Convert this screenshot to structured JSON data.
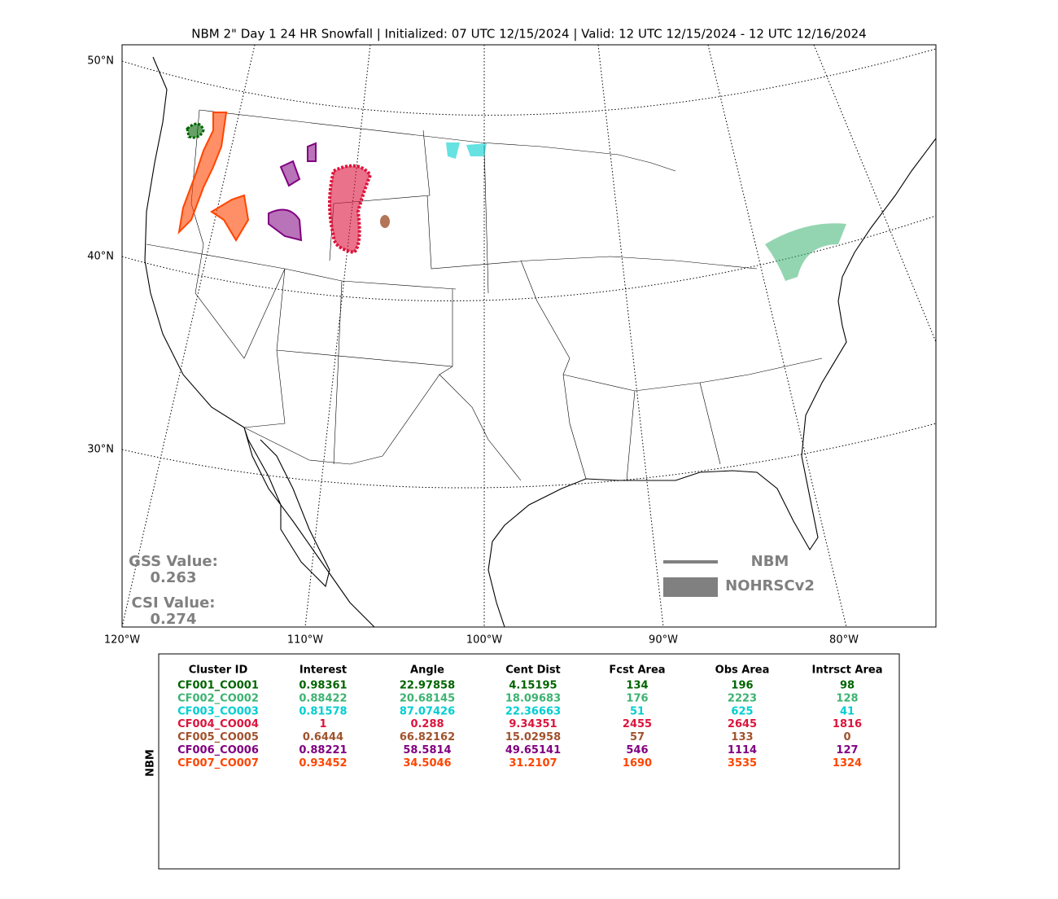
{
  "header": {
    "title": "NBM 2\" Day 1 24 HR Snowfall | Initialized: 07 UTC 12/15/2024 | Valid: 12 UTC 12/15/2024 - 12 UTC 12/16/2024"
  },
  "map": {
    "lat_labels": [
      "50°N",
      "40°N",
      "30°N"
    ],
    "lon_labels": [
      "120°W",
      "110°W",
      "100°W",
      "90°W",
      "80°W"
    ]
  },
  "scores": {
    "gss_label": "GSS Value:",
    "gss": 0.263,
    "csi_label": "CSI Value:",
    "csi": 0.274
  },
  "legend": {
    "line": "NBM",
    "patch": "NOHRSCv2",
    "color": "#808080"
  },
  "table": {
    "side_label": "NBM",
    "columns": [
      "Cluster ID",
      "Interest",
      "Angle",
      "Cent Dist",
      "Fcst Area",
      "Obs Area",
      "Intrsct Area"
    ],
    "rows": [
      {
        "color": "#006400",
        "cells": [
          "CF001_CO001",
          0.98361,
          22.97858,
          4.15195,
          134,
          196,
          98
        ]
      },
      {
        "color": "#3cb371",
        "cells": [
          "CF002_CO002",
          0.88422,
          20.68145,
          18.09683,
          176,
          2223,
          128
        ]
      },
      {
        "color": "#00ced1",
        "cells": [
          "CF003_CO003",
          0.81578,
          87.07426,
          22.36663,
          51,
          625,
          41
        ]
      },
      {
        "color": "#dc143c",
        "cells": [
          "CF004_CO004",
          1,
          0.288,
          9.34351,
          2455,
          2645,
          1816
        ]
      },
      {
        "color": "#a0522d",
        "cells": [
          "CF005_CO005",
          0.6444,
          66.82162,
          15.02958,
          57,
          133,
          0
        ]
      },
      {
        "color": "#800080",
        "cells": [
          "CF006_CO006",
          0.88221,
          58.5814,
          49.65141,
          546,
          1114,
          127
        ]
      },
      {
        "color": "#ff4500",
        "cells": [
          "CF007_CO007",
          0.93452,
          34.5046,
          31.2107,
          1690,
          3535,
          1324
        ]
      }
    ]
  }
}
